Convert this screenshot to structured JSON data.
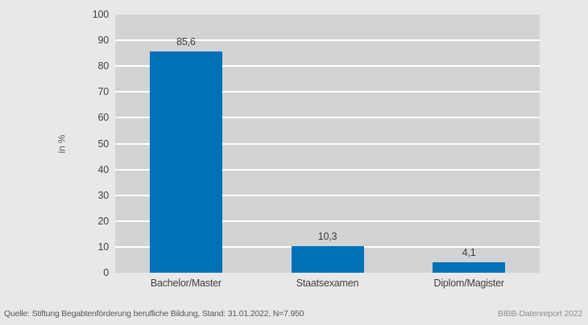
{
  "chart_data": {
    "type": "bar",
    "title": "",
    "categories": [
      "Bachelor/Master",
      "Staatsexamen",
      "Diplom/Magister"
    ],
    "category_slugs": [
      "bachelor-master",
      "staatsexamen",
      "diplom-magister"
    ],
    "values": [
      85.6,
      10.3,
      4.1
    ],
    "value_labels": [
      "85,6",
      "10,3",
      "4,1"
    ],
    "xlabel": "",
    "ylabel": "in %",
    "ylim": [
      0,
      100
    ],
    "ytick_step": 10,
    "grid": "horizontal white gridlines on gray plot background, legend none",
    "bar_color": "#0071b9"
  },
  "colors": {
    "page_bg": "#e8e8e9",
    "plot_bg": "#d2d3d4",
    "gridline": "#ffffff",
    "bar": "#0071b9",
    "tick_text": "#404144",
    "category_text": "#3e3f41",
    "axis_title_text": "#5a5b5e",
    "footer_source_text": "#56575a",
    "footer_report_text": "#8d8e91"
  },
  "footer": {
    "source": "Quelle: Stiftung Begabtenförderung berufliche Bildung, Stand: 31.01.2022, N=7.950",
    "report": "BIBB-Datenreport 2022"
  }
}
